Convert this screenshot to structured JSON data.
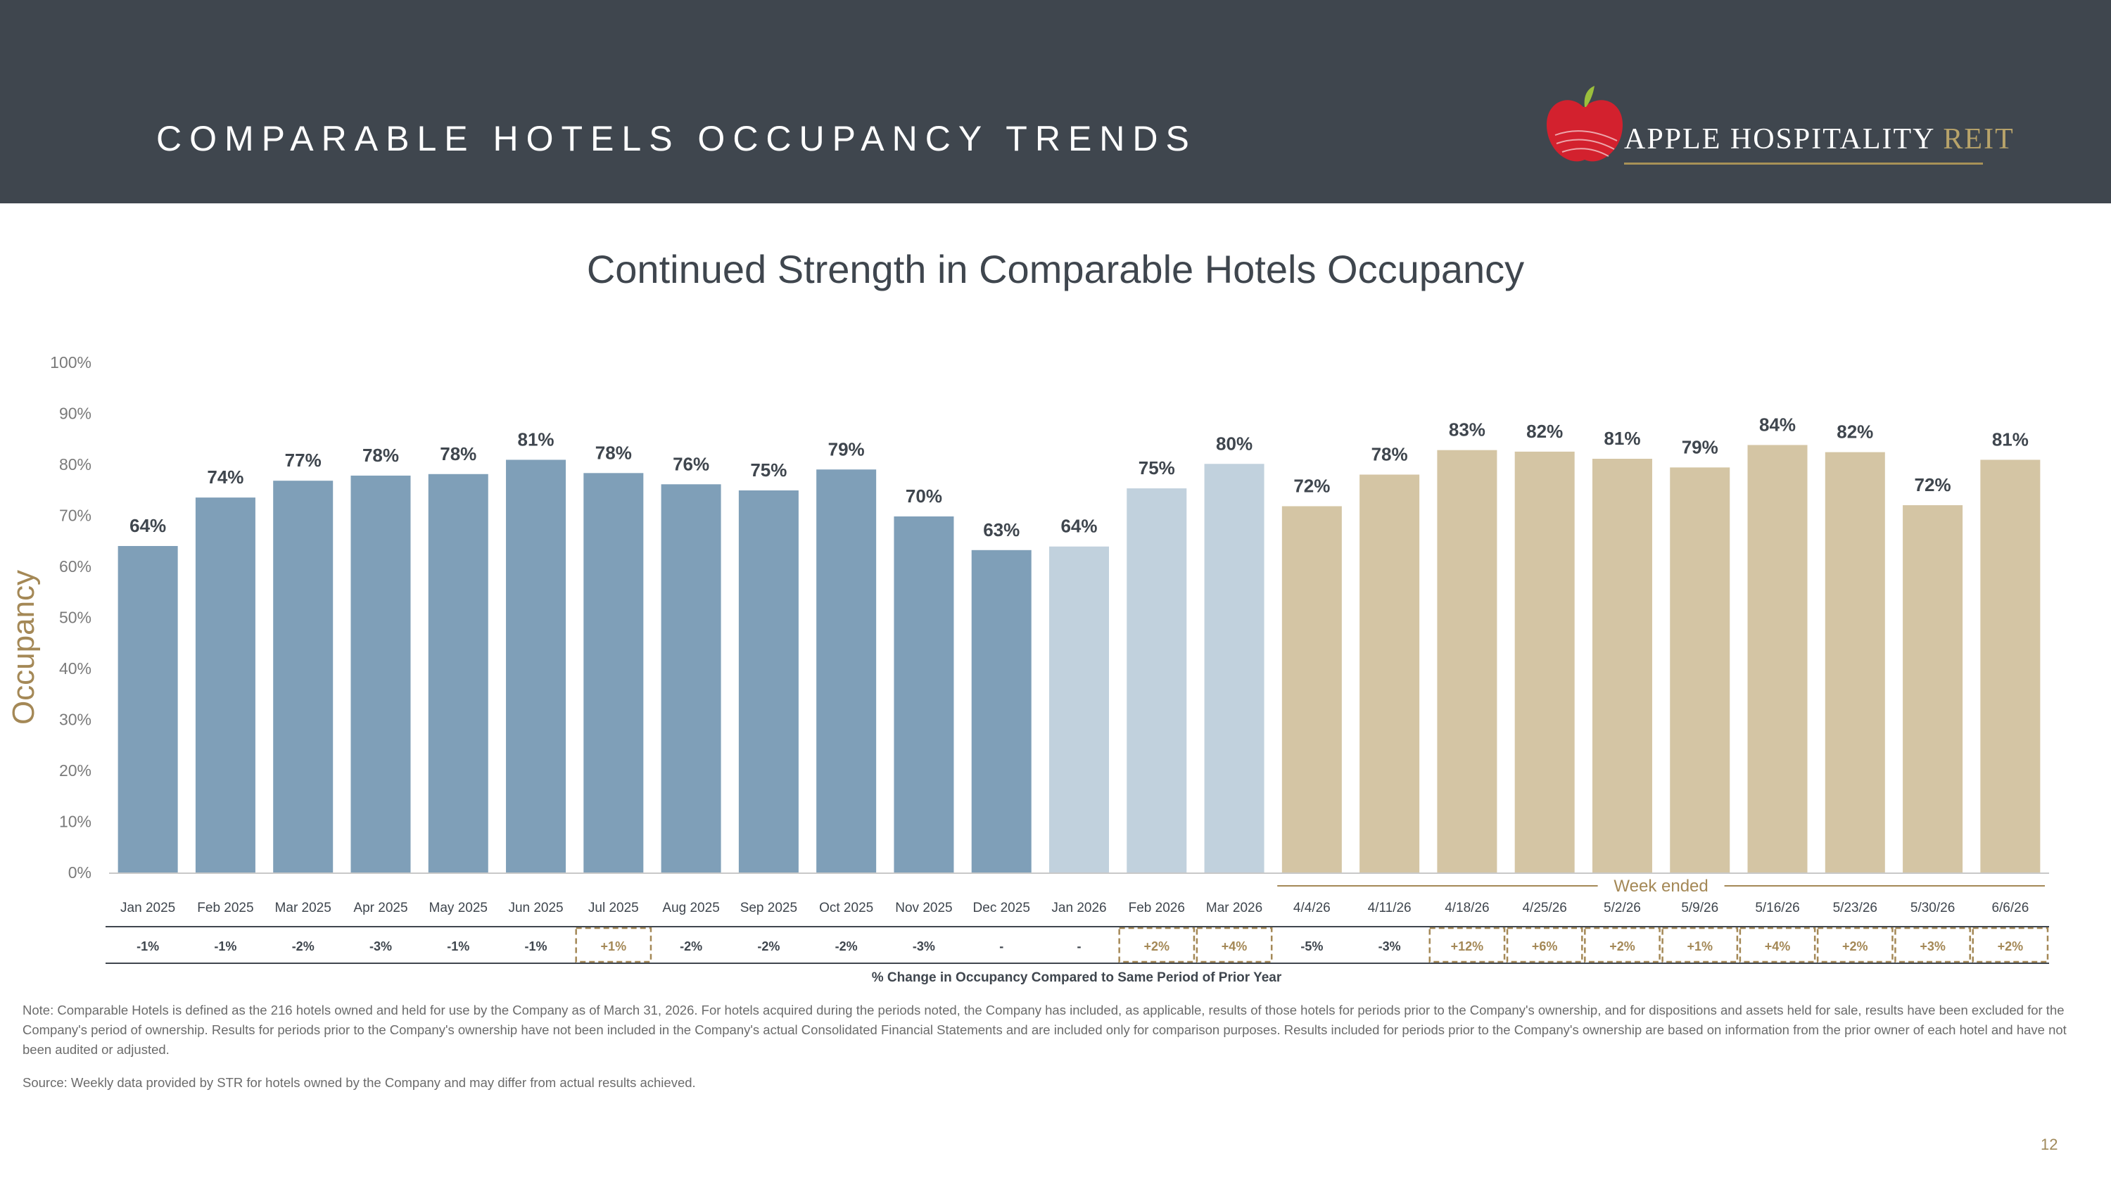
{
  "header": {
    "title": "COMPARABLE HOTELS OCCUPANCY TRENDS",
    "logo_main": "APPLE HOSPITALITY",
    "logo_accent": "REIT"
  },
  "colors": {
    "header_bg": "#3f464e",
    "bar_2025": "#7f9fb8",
    "bar_2026_month": "#c1d1dd",
    "bar_week": "#d4c5a4",
    "accent_gold": "#a48856",
    "text_dark": "#3f464e"
  },
  "chart_data": {
    "type": "bar",
    "title": "Continued Strength in Comparable Hotels Occupancy",
    "ylabel": "Occupancy",
    "ylim": [
      0,
      100
    ],
    "yticks": [
      "0%",
      "10%",
      "20%",
      "30%",
      "40%",
      "50%",
      "60%",
      "70%",
      "80%",
      "90%",
      "100%"
    ],
    "grid": false,
    "categories": [
      "Jan 2025",
      "Feb 2025",
      "Mar 2025",
      "Apr 2025",
      "May 2025",
      "Jun 2025",
      "Jul 2025",
      "Aug 2025",
      "Sep 2025",
      "Oct 2025",
      "Nov 2025",
      "Dec 2025",
      "Jan 2026",
      "Feb 2026",
      "Mar 2026",
      "4/4/26",
      "4/11/26",
      "4/18/26",
      "4/25/26",
      "5/2/26",
      "5/9/26",
      "5/16/26",
      "5/23/26",
      "5/30/26",
      "6/6/26"
    ],
    "values": [
      64,
      73.5,
      76.8,
      77.8,
      78.1,
      80.9,
      78.3,
      76.1,
      74.9,
      79,
      69.8,
      63.2,
      63.9,
      75.3,
      80.1,
      71.8,
      78,
      82.8,
      82.5,
      81.1,
      79.4,
      83.8,
      82.4,
      72,
      80.9
    ],
    "data_labels": [
      "64%",
      "74%",
      "77%",
      "78%",
      "78%",
      "81%",
      "78%",
      "76%",
      "75%",
      "79%",
      "70%",
      "63%",
      "64%",
      "75%",
      "80%",
      "72%",
      "78%",
      "83%",
      "82%",
      "81%",
      "79%",
      "84%",
      "82%",
      "72%",
      "81%"
    ],
    "groups": [
      "2025",
      "2025",
      "2025",
      "2025",
      "2025",
      "2025",
      "2025",
      "2025",
      "2025",
      "2025",
      "2025",
      "2025",
      "2026m",
      "2026m",
      "2026m",
      "week",
      "week",
      "week",
      "week",
      "week",
      "week",
      "week",
      "week",
      "week",
      "week"
    ],
    "changes": [
      "-1%",
      "-1%",
      "-2%",
      "-3%",
      "-1%",
      "-1%",
      "+1%",
      "-2%",
      "-2%",
      "-2%",
      "-3%",
      "-",
      "-",
      "+2%",
      "+4%",
      "-5%",
      "-3%",
      "+12%",
      "+6%",
      "+2%",
      "+1%",
      "+4%",
      "+2%",
      "+3%",
      "+2%"
    ],
    "week_label": "Week ended",
    "change_caption": "% Change in Occupancy Compared to Same Period of Prior Year"
  },
  "footer": {
    "note": "Note: Comparable Hotels is defined as the 216 hotels owned and held for use by the Company as of March 31, 2026. For hotels acquired during the periods noted, the Company has included, as applicable, results of those hotels for periods prior to the Company's ownership, and for dispositions and assets held for sale, results have been excluded for the Company's period of ownership. Results for periods prior to the Company's ownership have not been included in the Company's actual Consolidated Financial Statements and are included only for comparison purposes. Results included for periods prior to the Company's ownership are based on information from the prior owner of each hotel and have not been audited or adjusted.",
    "source": "Source:  Weekly data provided by STR for hotels owned by the Company and may differ from actual results achieved.",
    "page_number": "12"
  }
}
